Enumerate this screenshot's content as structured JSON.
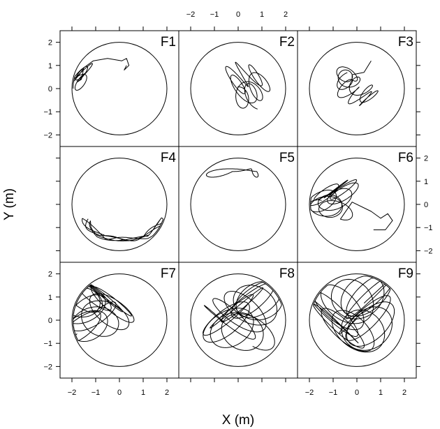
{
  "chart_data": {
    "type": "line",
    "xlabel": "X (m)",
    "ylabel": "Y (m)",
    "xlim": [
      -2.5,
      2.5
    ],
    "ylim": [
      -2.5,
      2.5
    ],
    "ticks": [
      -2,
      -1,
      0,
      1,
      2
    ],
    "tick_labels": [
      "−2",
      "−1",
      "0",
      "1",
      "2"
    ],
    "grid": false,
    "arena_radius": 2.0,
    "panels": [
      {
        "label": "F1",
        "cx": -1.7,
        "cy": 0.5,
        "rx": 0.35,
        "ry": 0.35,
        "loops": 4,
        "spread": 0.4,
        "seed": 11,
        "tail": [
          [
            -1.6,
            0.4
          ],
          [
            -1.5,
            0.9
          ],
          [
            -1.1,
            1.2
          ],
          [
            -0.5,
            1.3
          ],
          [
            0.1,
            1.2
          ],
          [
            0.3,
            1.3
          ],
          [
            0.4,
            1.0
          ],
          [
            0.2,
            0.8
          ],
          [
            0.3,
            1.0
          ]
        ]
      },
      {
        "label": "F2",
        "cx": 0.4,
        "cy": 0.1,
        "rx": 0.4,
        "ry": 0.5,
        "loops": 7,
        "spread": 0.9,
        "seed": 23,
        "tail": []
      },
      {
        "label": "F3",
        "cx": 0.0,
        "cy": 0.1,
        "rx": 0.35,
        "ry": 0.3,
        "loops": 8,
        "spread": 0.9,
        "seed": 37,
        "tail": [
          [
            -0.2,
            0.6
          ],
          [
            0.3,
            0.7
          ],
          [
            0.6,
            1.2
          ]
        ]
      },
      {
        "label": "F4",
        "cx": 0.2,
        "cy": -1.0,
        "rx": 1.6,
        "ry": 0.6,
        "loops": 5,
        "spread": 0.3,
        "seed": 41,
        "u": true,
        "tail": []
      },
      {
        "label": "F5",
        "cx": 0.0,
        "cy": 1.6,
        "rx": 1.0,
        "ry": 0.3,
        "loops": 4,
        "spread": 0.4,
        "seed": 53,
        "top": true,
        "tail": []
      },
      {
        "label": "F6",
        "cx": -1.0,
        "cy": 0.2,
        "rx": 0.6,
        "ry": 0.4,
        "loops": 9,
        "spread": 0.8,
        "seed": 61,
        "tail": [
          [
            -0.2,
            0.1
          ],
          [
            0.6,
            -0.3
          ],
          [
            1.0,
            -0.6
          ],
          [
            1.3,
            -0.4
          ],
          [
            1.5,
            -0.7
          ],
          [
            1.2,
            -1.1
          ],
          [
            0.7,
            -1.1
          ]
        ]
      },
      {
        "label": "F7",
        "cx": -1.0,
        "cy": 0.4,
        "rx": 0.9,
        "ry": 0.7,
        "loops": 12,
        "spread": 1.2,
        "seed": 71,
        "tail": []
      },
      {
        "label": "F8",
        "cx": 0.2,
        "cy": 0.2,
        "rx": 1.0,
        "ry": 0.8,
        "loops": 12,
        "spread": 1.2,
        "seed": 83,
        "tail": []
      },
      {
        "label": "F9",
        "cx": -0.2,
        "cy": 0.3,
        "rx": 1.0,
        "ry": 0.9,
        "loops": 14,
        "spread": 1.3,
        "seed": 97,
        "tail": []
      }
    ]
  }
}
